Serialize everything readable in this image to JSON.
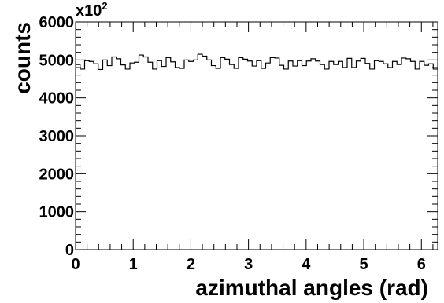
{
  "chart_data": {
    "type": "histogram",
    "title": "",
    "xlabel": "azimuthal angles (rad)",
    "ylabel": "counts",
    "y_scale_label": {
      "base": "x10",
      "exponent": "2"
    },
    "xlim": [
      0,
      6.2832
    ],
    "ylim": [
      0,
      6000
    ],
    "xticks": [
      0,
      1,
      2,
      3,
      4,
      5,
      6
    ],
    "xtick_labels": [
      "0",
      "1",
      "2",
      "3",
      "4",
      "5",
      "6"
    ],
    "yticks": [
      0,
      1000,
      2000,
      3000,
      4000,
      5000,
      6000
    ],
    "ytick_labels": [
      "0",
      "1000",
      "2000",
      "3000",
      "4000",
      "5000",
      "6000"
    ],
    "grid": false,
    "legend": "none",
    "series_color": "#000000",
    "bins": 80,
    "values": [
      4880,
      4760,
      4980,
      4960,
      4900,
      4750,
      5000,
      4850,
      5080,
      5030,
      4870,
      4760,
      4920,
      4940,
      5130,
      5080,
      4940,
      4760,
      4980,
      4830,
      5060,
      4950,
      4800,
      4780,
      5000,
      4960,
      5000,
      5150,
      5100,
      5000,
      4850,
      4780,
      5060,
      5020,
      4880,
      4780,
      5060,
      5020,
      4970,
      4840,
      4980,
      4780,
      4920,
      5060,
      5050,
      4860,
      4760,
      4970,
      4840,
      4980,
      4850,
      4970,
      5030,
      4970,
      4880,
      4760,
      4960,
      4880,
      4960,
      4800,
      5040,
      4800,
      4970,
      5040,
      4910,
      4760,
      4980,
      4960,
      4900,
      4800,
      4960,
      4880,
      5050,
      5030,
      4960,
      4760,
      4960,
      4860,
      4900,
      4760
    ]
  }
}
